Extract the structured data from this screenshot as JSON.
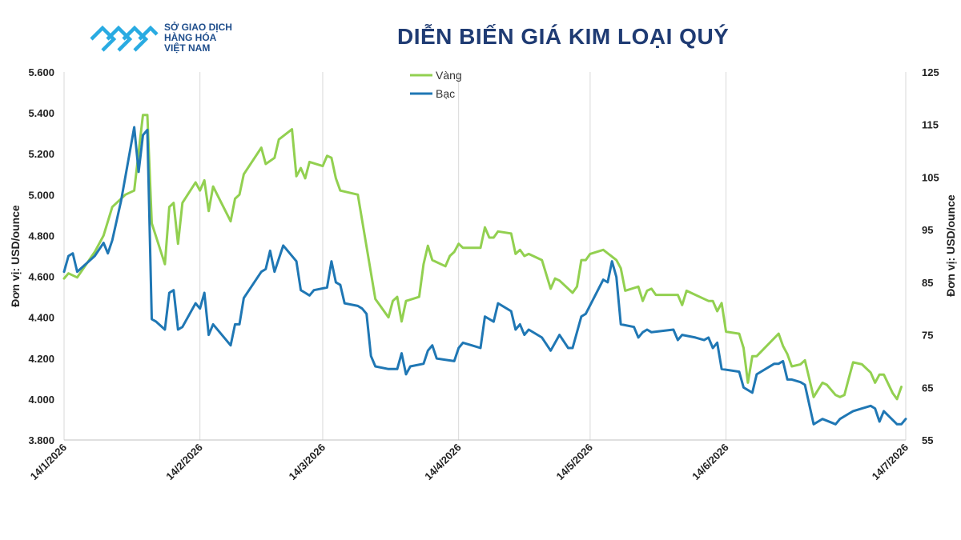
{
  "brand": {
    "line1": "SỞ GIAO DỊCH",
    "line2": "HÀNG HÓA",
    "line3": "VIỆT NAM",
    "logo_color": "#29abe2",
    "text_color": "#1f4e8c"
  },
  "title": "DIỄN BIẾN GIÁ KIM LOẠI QUÝ",
  "chart_data": {
    "type": "line",
    "xlabel": "",
    "ylabel_left": "Đơn vị: USD/ounce",
    "ylabel_right": "Đơn vị: USD/ounce",
    "ylim_left": [
      3800,
      5600
    ],
    "ylim_right": [
      55,
      125
    ],
    "yticks_left": [
      "3.800",
      "4.000",
      "4.200",
      "4.400",
      "4.600",
      "4.800",
      "5.000",
      "5.200",
      "5.400",
      "5.600"
    ],
    "yticks_right": [
      "55",
      "65",
      "75",
      "85",
      "95",
      "105",
      "115",
      "125"
    ],
    "xticks": [
      "14/1/2026",
      "14/2/2026",
      "14/3/2026",
      "14/4/2026",
      "14/5/2026",
      "14/6/2026",
      "14/7/2026"
    ],
    "grid": "vertical",
    "legend_position": "top-center",
    "series": [
      {
        "name": "Vàng",
        "axis": "left",
        "color": "#92d050",
        "points": [
          [
            "2026-01-14",
            4590
          ],
          [
            "2026-01-15",
            4615
          ],
          [
            "2026-01-17",
            4595
          ],
          [
            "2026-01-21",
            4720
          ],
          [
            "2026-01-23",
            4800
          ],
          [
            "2026-01-25",
            4940
          ],
          [
            "2026-01-28",
            5000
          ],
          [
            "2026-01-30",
            5020
          ],
          [
            "2026-02-01",
            5390
          ],
          [
            "2026-02-02",
            5390
          ],
          [
            "2026-02-03",
            4860
          ],
          [
            "2026-02-06",
            4660
          ],
          [
            "2026-02-07",
            4940
          ],
          [
            "2026-02-08",
            4960
          ],
          [
            "2026-02-09",
            4760
          ],
          [
            "2026-02-10",
            4960
          ],
          [
            "2026-02-13",
            5060
          ],
          [
            "2026-02-14",
            5020
          ],
          [
            "2026-02-15",
            5070
          ],
          [
            "2026-02-16",
            4920
          ],
          [
            "2026-02-17",
            5040
          ],
          [
            "2026-02-21",
            4870
          ],
          [
            "2026-02-22",
            4980
          ],
          [
            "2026-02-23",
            5000
          ],
          [
            "2026-02-24",
            5100
          ],
          [
            "2026-02-28",
            5230
          ],
          [
            "2026-03-01",
            5150
          ],
          [
            "2026-03-03",
            5180
          ],
          [
            "2026-03-04",
            5270
          ],
          [
            "2026-03-07",
            5320
          ],
          [
            "2026-03-08",
            5090
          ],
          [
            "2026-03-09",
            5130
          ],
          [
            "2026-03-10",
            5080
          ],
          [
            "2026-03-11",
            5160
          ],
          [
            "2026-03-14",
            5140
          ],
          [
            "2026-03-15",
            5190
          ],
          [
            "2026-03-16",
            5180
          ],
          [
            "2026-03-17",
            5080
          ],
          [
            "2026-03-18",
            5020
          ],
          [
            "2026-03-22",
            5000
          ],
          [
            "2026-03-26",
            4490
          ],
          [
            "2026-03-29",
            4400
          ],
          [
            "2026-03-30",
            4480
          ],
          [
            "2026-03-31",
            4500
          ],
          [
            "2026-04-01",
            4380
          ],
          [
            "2026-04-02",
            4480
          ],
          [
            "2026-04-05",
            4500
          ],
          [
            "2026-04-06",
            4660
          ],
          [
            "2026-04-07",
            4750
          ],
          [
            "2026-04-08",
            4680
          ],
          [
            "2026-04-11",
            4650
          ],
          [
            "2026-04-12",
            4700
          ],
          [
            "2026-04-13",
            4720
          ],
          [
            "2026-04-14",
            4760
          ],
          [
            "2026-04-15",
            4740
          ],
          [
            "2026-04-19",
            4740
          ],
          [
            "2026-04-20",
            4840
          ],
          [
            "2026-04-21",
            4790
          ],
          [
            "2026-04-22",
            4790
          ],
          [
            "2026-04-23",
            4820
          ],
          [
            "2026-04-26",
            4810
          ],
          [
            "2026-04-27",
            4710
          ],
          [
            "2026-04-28",
            4730
          ],
          [
            "2026-04-29",
            4700
          ],
          [
            "2026-04-30",
            4710
          ],
          [
            "2026-05-03",
            4680
          ],
          [
            "2026-05-05",
            4540
          ],
          [
            "2026-05-06",
            4590
          ],
          [
            "2026-05-07",
            4580
          ],
          [
            "2026-05-10",
            4520
          ],
          [
            "2026-05-11",
            4550
          ],
          [
            "2026-05-12",
            4680
          ],
          [
            "2026-05-13",
            4680
          ],
          [
            "2026-05-14",
            4710
          ],
          [
            "2026-05-17",
            4730
          ],
          [
            "2026-05-20",
            4680
          ],
          [
            "2026-05-21",
            4640
          ],
          [
            "2026-05-22",
            4530
          ],
          [
            "2026-05-25",
            4550
          ],
          [
            "2026-05-26",
            4480
          ],
          [
            "2026-05-27",
            4530
          ],
          [
            "2026-05-28",
            4540
          ],
          [
            "2026-05-29",
            4510
          ],
          [
            "2026-06-03",
            4510
          ],
          [
            "2026-06-04",
            4460
          ],
          [
            "2026-06-05",
            4530
          ],
          [
            "2026-06-06",
            4520
          ],
          [
            "2026-06-10",
            4480
          ],
          [
            "2026-06-11",
            4480
          ],
          [
            "2026-06-12",
            4430
          ],
          [
            "2026-06-13",
            4470
          ],
          [
            "2026-06-14",
            4330
          ],
          [
            "2026-06-17",
            4320
          ],
          [
            "2026-06-18",
            4250
          ],
          [
            "2026-06-19",
            4080
          ],
          [
            "2026-06-20",
            4210
          ],
          [
            "2026-06-21",
            4210
          ],
          [
            "2026-06-26",
            4320
          ],
          [
            "2026-06-27",
            4260
          ],
          [
            "2026-06-28",
            4220
          ],
          [
            "2026-06-29",
            4160
          ],
          [
            "2026-07-01",
            4170
          ],
          [
            "2026-07-02",
            4190
          ],
          [
            "2026-07-04",
            4010
          ],
          [
            "2026-07-06",
            4080
          ],
          [
            "2026-07-07",
            4070
          ],
          [
            "2026-07-09",
            4020
          ],
          [
            "2026-07-10",
            4010
          ],
          [
            "2026-07-11",
            4020
          ],
          [
            "2026-07-12",
            4100
          ],
          [
            "2026-07-13",
            4180
          ],
          [
            "2026-07-15",
            4170
          ],
          [
            "2026-07-17",
            4130
          ],
          [
            "2026-07-18",
            4080
          ],
          [
            "2026-07-19",
            4120
          ],
          [
            "2026-07-20",
            4120
          ],
          [
            "2026-07-22",
            4030
          ],
          [
            "2026-07-23",
            4000
          ],
          [
            "2026-07-24",
            4060
          ]
        ]
      },
      {
        "name": "Bạc",
        "axis": "right",
        "color": "#1f77b4",
        "points": [
          [
            "2026-01-14",
            87
          ],
          [
            "2026-01-15",
            90
          ],
          [
            "2026-01-16",
            90.5
          ],
          [
            "2026-01-17",
            87
          ],
          [
            "2026-01-21",
            90
          ],
          [
            "2026-01-23",
            92.5
          ],
          [
            "2026-01-24",
            90.5
          ],
          [
            "2026-01-25",
            93
          ],
          [
            "2026-01-27",
            100.5
          ],
          [
            "2026-01-30",
            114.5
          ],
          [
            "2026-01-31",
            106
          ],
          [
            "2026-02-01",
            113
          ],
          [
            "2026-02-02",
            114
          ],
          [
            "2026-02-03",
            78
          ],
          [
            "2026-02-04",
            77.5
          ],
          [
            "2026-02-06",
            76
          ],
          [
            "2026-02-07",
            83
          ],
          [
            "2026-02-08",
            83.5
          ],
          [
            "2026-02-09",
            76
          ],
          [
            "2026-02-10",
            76.5
          ],
          [
            "2026-02-13",
            81
          ],
          [
            "2026-02-14",
            80
          ],
          [
            "2026-02-15",
            83
          ],
          [
            "2026-02-16",
            75
          ],
          [
            "2026-02-17",
            77
          ],
          [
            "2026-02-21",
            73
          ],
          [
            "2026-02-22",
            77
          ],
          [
            "2026-02-23",
            77
          ],
          [
            "2026-02-24",
            82
          ],
          [
            "2026-02-28",
            87
          ],
          [
            "2026-03-01",
            87.5
          ],
          [
            "2026-03-02",
            91
          ],
          [
            "2026-03-03",
            87
          ],
          [
            "2026-03-05",
            92
          ],
          [
            "2026-03-08",
            89
          ],
          [
            "2026-03-09",
            83.5
          ],
          [
            "2026-03-10",
            83
          ],
          [
            "2026-03-11",
            82.5
          ],
          [
            "2026-03-12",
            83.5
          ],
          [
            "2026-03-15",
            84
          ],
          [
            "2026-03-16",
            89
          ],
          [
            "2026-03-17",
            85
          ],
          [
            "2026-03-18",
            84.5
          ],
          [
            "2026-03-19",
            81
          ],
          [
            "2026-03-22",
            80.5
          ],
          [
            "2026-03-23",
            80
          ],
          [
            "2026-03-24",
            79
          ],
          [
            "2026-03-25",
            71
          ],
          [
            "2026-03-26",
            69
          ],
          [
            "2026-03-29",
            68.5
          ],
          [
            "2026-03-31",
            68.5
          ],
          [
            "2026-04-01",
            71.5
          ],
          [
            "2026-04-02",
            67.5
          ],
          [
            "2026-04-03",
            69
          ],
          [
            "2026-04-06",
            69.5
          ],
          [
            "2026-04-07",
            72
          ],
          [
            "2026-04-08",
            73
          ],
          [
            "2026-04-09",
            70.5
          ],
          [
            "2026-04-13",
            70
          ],
          [
            "2026-04-14",
            72.5
          ],
          [
            "2026-04-15",
            73.5
          ],
          [
            "2026-04-17",
            73
          ],
          [
            "2026-04-19",
            72.5
          ],
          [
            "2026-04-20",
            78.5
          ],
          [
            "2026-04-21",
            78
          ],
          [
            "2026-04-22",
            77.5
          ],
          [
            "2026-04-23",
            81
          ],
          [
            "2026-04-26",
            79.5
          ],
          [
            "2026-04-27",
            76
          ],
          [
            "2026-04-28",
            77
          ],
          [
            "2026-04-29",
            75
          ],
          [
            "2026-04-30",
            76
          ],
          [
            "2026-05-03",
            74.5
          ],
          [
            "2026-05-05",
            72
          ],
          [
            "2026-05-07",
            75
          ],
          [
            "2026-05-09",
            72.5
          ],
          [
            "2026-05-10",
            72.5
          ],
          [
            "2026-05-12",
            78.5
          ],
          [
            "2026-05-13",
            79
          ],
          [
            "2026-05-17",
            85.5
          ],
          [
            "2026-05-18",
            85
          ],
          [
            "2026-05-19",
            89
          ],
          [
            "2026-05-20",
            86
          ],
          [
            "2026-05-21",
            77
          ],
          [
            "2026-05-24",
            76.5
          ],
          [
            "2026-05-25",
            74.5
          ],
          [
            "2026-05-26",
            75.5
          ],
          [
            "2026-05-27",
            76
          ],
          [
            "2026-05-28",
            75.5
          ],
          [
            "2026-06-02",
            76
          ],
          [
            "2026-06-03",
            74
          ],
          [
            "2026-06-04",
            75
          ],
          [
            "2026-06-07",
            74.5
          ],
          [
            "2026-06-09",
            74
          ],
          [
            "2026-06-10",
            74.5
          ],
          [
            "2026-06-11",
            72.5
          ],
          [
            "2026-06-12",
            73.5
          ],
          [
            "2026-06-13",
            68.5
          ],
          [
            "2026-06-17",
            68
          ],
          [
            "2026-06-18",
            65
          ],
          [
            "2026-06-20",
            64
          ],
          [
            "2026-06-21",
            67.5
          ],
          [
            "2026-06-25",
            69.5
          ],
          [
            "2026-06-26",
            69.5
          ],
          [
            "2026-06-27",
            70
          ],
          [
            "2026-06-28",
            66.5
          ],
          [
            "2026-06-29",
            66.5
          ],
          [
            "2026-07-01",
            66
          ],
          [
            "2026-07-02",
            65.5
          ],
          [
            "2026-07-04",
            58
          ],
          [
            "2026-07-05",
            58.5
          ],
          [
            "2026-07-06",
            59
          ],
          [
            "2026-07-09",
            58
          ],
          [
            "2026-07-10",
            59
          ],
          [
            "2026-07-12",
            60
          ],
          [
            "2026-07-13",
            60.5
          ],
          [
            "2026-07-15",
            61
          ],
          [
            "2026-07-17",
            61.5
          ],
          [
            "2026-07-18",
            61
          ],
          [
            "2026-07-19",
            58.5
          ],
          [
            "2026-07-20",
            60.5
          ],
          [
            "2026-07-23",
            58
          ],
          [
            "2026-07-24",
            58
          ],
          [
            "2026-07-25",
            59
          ]
        ]
      }
    ]
  }
}
